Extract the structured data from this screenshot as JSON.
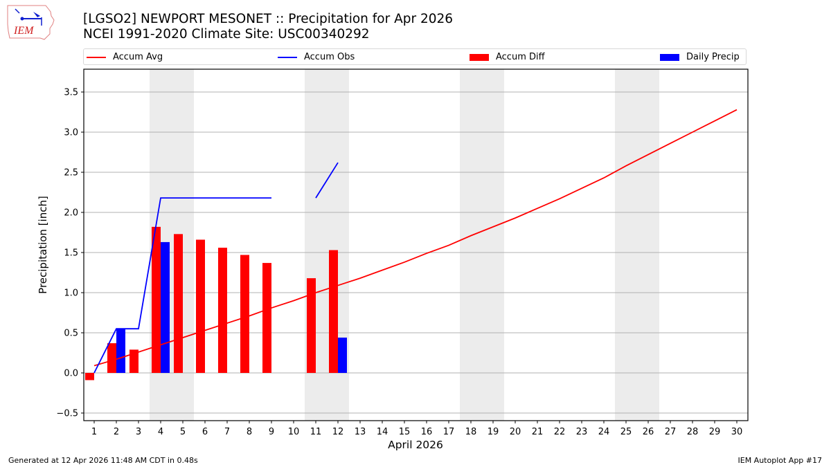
{
  "header": {
    "title_line1": "[LGSO2] NEWPORT MESONET :: Precipitation for Apr 2026",
    "title_line2": "NCEI 1991-2020 Climate Site: USC00340292",
    "logo_text": "IEM"
  },
  "legend": {
    "items": [
      {
        "label": "Accum Avg",
        "type": "line",
        "color": "#ff0000"
      },
      {
        "label": "Accum Obs",
        "type": "line",
        "color": "#0000ff"
      },
      {
        "label": "Accum Diff",
        "type": "bar",
        "color": "#ff0000"
      },
      {
        "label": "Daily Precip",
        "type": "bar",
        "color": "#0000ff"
      }
    ]
  },
  "footer": {
    "left": "Generated at 12 Apr 2026 11:48 AM CDT in 0.48s",
    "right": "IEM Autoplot App #17"
  },
  "chart_data": {
    "type": "bar",
    "title": "[LGSO2] NEWPORT MESONET :: Precipitation for Apr 2026",
    "subtitle": "NCEI 1991-2020 Climate Site: USC00340292",
    "xlabel": "April 2026",
    "ylabel": "Precipitation [inch]",
    "ylim": [
      -0.58,
      3.78
    ],
    "yticks": [
      -0.5,
      0.0,
      0.5,
      1.0,
      1.5,
      2.0,
      2.5,
      3.0,
      3.5
    ],
    "ytick_labels": [
      "−0.5",
      "0.0",
      "0.5",
      "1.0",
      "1.5",
      "2.0",
      "2.5",
      "3.0",
      "3.5"
    ],
    "grid": "horizontal",
    "legend_position": "top",
    "weekend_shading_days": [
      [
        4,
        5
      ],
      [
        11,
        12
      ],
      [
        18,
        19
      ],
      [
        25,
        26
      ]
    ],
    "categories": [
      1,
      2,
      3,
      4,
      5,
      6,
      7,
      8,
      9,
      10,
      11,
      12,
      13,
      14,
      15,
      16,
      17,
      18,
      19,
      20,
      21,
      22,
      23,
      24,
      25,
      26,
      27,
      28,
      29,
      30
    ],
    "series": [
      {
        "name": "Accum Avg",
        "type": "line",
        "color": "#ff0000",
        "values": [
          0.09,
          0.17,
          0.26,
          0.35,
          0.44,
          0.53,
          0.62,
          0.71,
          0.81,
          0.9,
          1.0,
          1.09,
          1.18,
          1.28,
          1.38,
          1.49,
          1.59,
          1.71,
          1.82,
          1.93,
          2.05,
          2.17,
          2.3,
          2.43,
          2.58,
          2.72,
          2.86,
          3.0,
          3.14,
          3.28
        ]
      },
      {
        "name": "Accum Obs",
        "type": "line",
        "color": "#0000ff",
        "values": [
          0.0,
          0.55,
          0.55,
          2.18,
          2.18,
          2.18,
          2.18,
          2.18,
          2.18,
          null,
          2.18,
          2.62,
          null,
          null,
          null,
          null,
          null,
          null,
          null,
          null,
          null,
          null,
          null,
          null,
          null,
          null,
          null,
          null,
          null,
          null
        ]
      },
      {
        "name": "Accum Diff",
        "type": "bar",
        "color": "#ff0000",
        "values": [
          -0.09,
          0.37,
          0.29,
          1.82,
          1.73,
          1.66,
          1.56,
          1.47,
          1.37,
          null,
          1.18,
          1.53,
          null,
          null,
          null,
          null,
          null,
          null,
          null,
          null,
          null,
          null,
          null,
          null,
          null,
          null,
          null,
          null,
          null,
          null
        ]
      },
      {
        "name": "Daily Precip",
        "type": "bar",
        "color": "#0000ff",
        "values": [
          0.0,
          0.55,
          0.0,
          1.63,
          0.0,
          0.0,
          0.0,
          0.0,
          0.0,
          null,
          0.0,
          0.44,
          null,
          null,
          null,
          null,
          null,
          null,
          null,
          null,
          null,
          null,
          null,
          null,
          null,
          null,
          null,
          null,
          null,
          null
        ]
      }
    ]
  }
}
